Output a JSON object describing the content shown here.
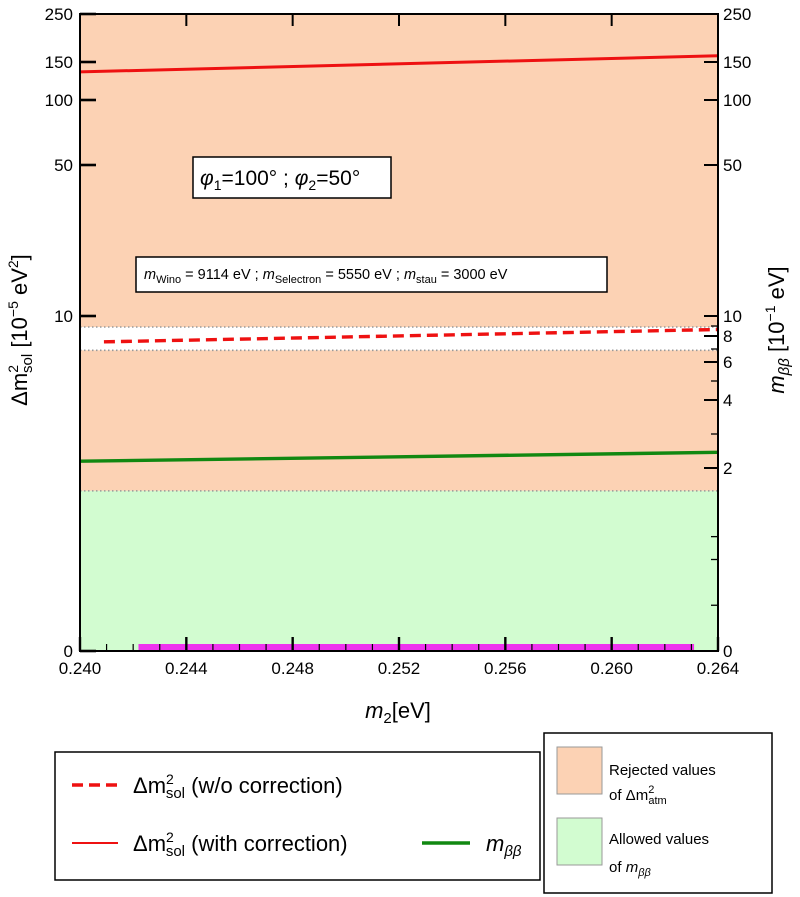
{
  "chart_data": {
    "type": "line",
    "xlabel_main": "m",
    "xlabel_sub": "2",
    "xlabel_unit": "[eV]",
    "xlim": [
      0.24,
      0.264
    ],
    "x_ticks": [
      "0.240",
      "0.244",
      "0.248",
      "0.252",
      "0.256",
      "0.260",
      "0.264"
    ],
    "ylabel_left": {
      "delta": "Δm",
      "sup": "2",
      "sub": "sol",
      "unit_open": " [10",
      "unit_exp": "−5",
      "unit_mid": " eV",
      "unit_sup": "2",
      "unit_close": "]"
    },
    "ylabel_right": {
      "m": "m",
      "sub": "ββ",
      "unit_open": " [10",
      "unit_exp": "−1",
      "unit_close": " eV]"
    },
    "left_ticks": [
      "0",
      "10",
      "50",
      "100",
      "150",
      "250"
    ],
    "left_tick_values": [
      0,
      10,
      50,
      100,
      150,
      250
    ],
    "right_ticks": [
      "0",
      "2",
      "4",
      "6",
      "8",
      "10",
      "50",
      "100",
      "150",
      "250"
    ],
    "right_tick_values": [
      0,
      2,
      4,
      6,
      8,
      10,
      50,
      100,
      150,
      250
    ],
    "regions": [
      {
        "name": "rejected_dm2_atm",
        "from": 1.75,
        "to": 250,
        "color": "#fcd2b4"
      },
      {
        "name": "allowed_mbb",
        "from": 0,
        "to": 1.75,
        "color": "#d2fcd0"
      },
      {
        "name": "allowed_band_white",
        "from": 6.9,
        "to": 8.9,
        "color": "#ffffff"
      }
    ],
    "series": [
      {
        "name": "dm2_sol_without_correction",
        "style": "dashed",
        "color": "#ee1111",
        "x": [
          0.2409,
          0.264
        ],
        "values": [
          7.55,
          8.65
        ]
      },
      {
        "name": "dm2_sol_with_correction",
        "style": "solid",
        "color": "#ee1111",
        "x": [
          0.24,
          0.264
        ],
        "values": [
          137,
          163
        ]
      },
      {
        "name": "m_beta_beta",
        "style": "solid",
        "color": "#118811",
        "x": [
          0.24,
          0.264
        ],
        "values": [
          2.2,
          2.46
        ]
      }
    ],
    "annotations": {
      "phases": {
        "phi1": "φ",
        "phi1_sub": "1",
        "phi1_val": "=100° ; ",
        "phi2": "φ",
        "phi2_sub": "2",
        "phi2_val": "=50°"
      },
      "masses": {
        "m1": "m",
        "m1_sub": "Wino",
        "m1_val": " = 9114 eV ; ",
        "m2": "m",
        "m2_sub": "Selectron",
        "m2_val": " = 5550 eV ; ",
        "m3": "m",
        "m3_sub": "stau",
        "m3_val": " = 3000 eV"
      }
    },
    "legend": {
      "item1": {
        "delta": "Δm",
        "sup": "2",
        "sub": "sol",
        "rest": " (w/o correction)"
      },
      "item2": {
        "delta": "Δm",
        "sup": "2",
        "sub": "sol",
        "rest": " (with correction)"
      },
      "item3": {
        "m": "m",
        "sub": "ββ"
      },
      "region1_line1": "Rejected values",
      "region1_of": "of Δm",
      "region1_sup": "2",
      "region1_sub": "atm",
      "region2_line1": "Allowed values",
      "region2_of": "of ",
      "region2_m": "m",
      "region2_sub": "ββ"
    }
  }
}
